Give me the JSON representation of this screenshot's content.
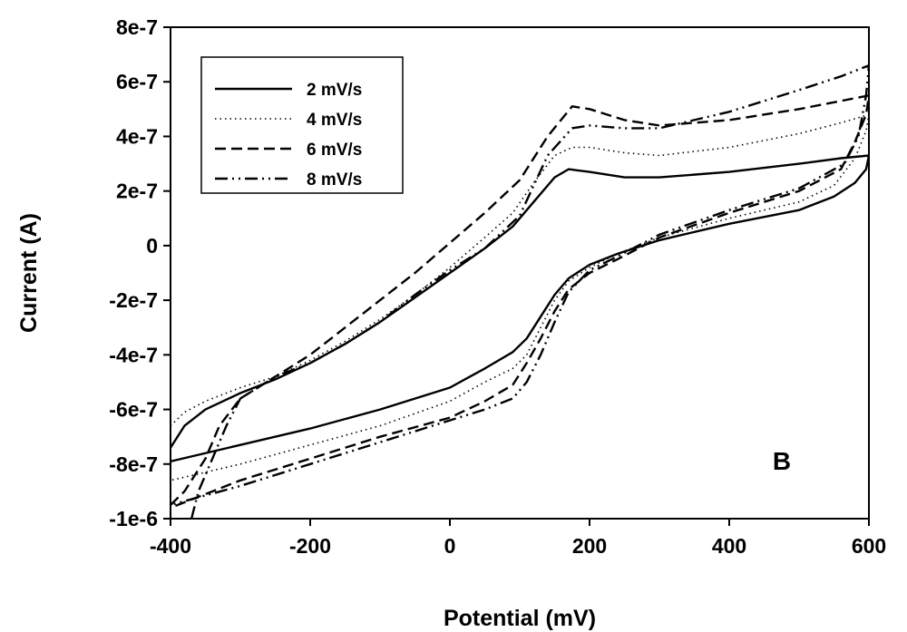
{
  "chart_data": {
    "type": "line",
    "title": "",
    "xlabel": "Potential (mV)",
    "ylabel": "Current (A)",
    "xlim": [
      -400,
      600
    ],
    "ylim": [
      -1e-06,
      8e-07
    ],
    "x_ticks": [
      -400,
      -200,
      0,
      200,
      400,
      600
    ],
    "x_tick_labels": [
      "-400",
      "-200",
      "0",
      "200",
      "400",
      "600"
    ],
    "y_ticks": [
      -1e-06,
      -8e-07,
      -6e-07,
      -4e-07,
      -2e-07,
      0,
      2e-07,
      4e-07,
      6e-07,
      8e-07
    ],
    "y_tick_labels": [
      "-1e-6",
      "-8e-7",
      "-6e-7",
      "-4e-7",
      "-2e-7",
      "0",
      "2e-7",
      "4e-7",
      "6e-7",
      "8e-7"
    ],
    "grid": false,
    "legend_position": "top-left",
    "annotation": "B",
    "series": [
      {
        "name": "2 mV/s",
        "style": "solid",
        "color": "#000000",
        "points": [
          [
            -400,
            -7.4e-07
          ],
          [
            -380,
            -6.6e-07
          ],
          [
            -350,
            -6e-07
          ],
          [
            -300,
            -5.4e-07
          ],
          [
            -250,
            -4.9e-07
          ],
          [
            -200,
            -4.3e-07
          ],
          [
            -150,
            -3.6e-07
          ],
          [
            -100,
            -2.8e-07
          ],
          [
            -50,
            -1.9e-07
          ],
          [
            0,
            -1e-07
          ],
          [
            50,
            -1e-08
          ],
          [
            90,
            7e-08
          ],
          [
            120,
            1.6e-07
          ],
          [
            150,
            2.5e-07
          ],
          [
            170,
            2.8e-07
          ],
          [
            200,
            2.7e-07
          ],
          [
            250,
            2.5e-07
          ],
          [
            300,
            2.5e-07
          ],
          [
            400,
            2.7e-07
          ],
          [
            500,
            3e-07
          ],
          [
            560,
            3.2e-07
          ],
          [
            600,
            3.3e-07
          ],
          [
            596,
            2.8e-07
          ],
          [
            580,
            2.3e-07
          ],
          [
            550,
            1.8e-07
          ],
          [
            500,
            1.3e-07
          ],
          [
            400,
            8e-08
          ],
          [
            300,
            2e-08
          ],
          [
            240,
            -3e-08
          ],
          [
            200,
            -7e-08
          ],
          [
            170,
            -1.2e-07
          ],
          [
            150,
            -1.8e-07
          ],
          [
            130,
            -2.6e-07
          ],
          [
            110,
            -3.4e-07
          ],
          [
            90,
            -3.9e-07
          ],
          [
            50,
            -4.5e-07
          ],
          [
            0,
            -5.2e-07
          ],
          [
            -100,
            -6e-07
          ],
          [
            -200,
            -6.7e-07
          ],
          [
            -300,
            -7.3e-07
          ],
          [
            -400,
            -7.9e-07
          ]
        ]
      },
      {
        "name": "4 mV/s",
        "style": "dotted",
        "color": "#000000",
        "points": [
          [
            -400,
            -6.6e-07
          ],
          [
            -380,
            -6.1e-07
          ],
          [
            -350,
            -5.7e-07
          ],
          [
            -300,
            -5.2e-07
          ],
          [
            -250,
            -4.8e-07
          ],
          [
            -200,
            -4.2e-07
          ],
          [
            -150,
            -3.5e-07
          ],
          [
            -100,
            -2.7e-07
          ],
          [
            -50,
            -1.8e-07
          ],
          [
            0,
            -8e-08
          ],
          [
            50,
            3e-08
          ],
          [
            90,
            1.2e-07
          ],
          [
            120,
            2.3e-07
          ],
          [
            150,
            3.3e-07
          ],
          [
            175,
            3.6e-07
          ],
          [
            200,
            3.6e-07
          ],
          [
            250,
            3.4e-07
          ],
          [
            300,
            3.3e-07
          ],
          [
            400,
            3.6e-07
          ],
          [
            500,
            4.1e-07
          ],
          [
            560,
            4.5e-07
          ],
          [
            600,
            4.8e-07
          ],
          [
            596,
            4.2e-07
          ],
          [
            580,
            3.2e-07
          ],
          [
            550,
            2.2e-07
          ],
          [
            500,
            1.6e-07
          ],
          [
            400,
            1e-07
          ],
          [
            300,
            3e-08
          ],
          [
            240,
            -3e-08
          ],
          [
            200,
            -8e-08
          ],
          [
            170,
            -1.3e-07
          ],
          [
            150,
            -2e-07
          ],
          [
            130,
            -3e-07
          ],
          [
            110,
            -4e-07
          ],
          [
            90,
            -4.5e-07
          ],
          [
            50,
            -5e-07
          ],
          [
            0,
            -5.7e-07
          ],
          [
            -100,
            -6.6e-07
          ],
          [
            -200,
            -7.3e-07
          ],
          [
            -300,
            -8e-07
          ],
          [
            -400,
            -8.6e-07
          ]
        ]
      },
      {
        "name": "6 mV/s",
        "style": "dashed",
        "color": "#000000",
        "points": [
          [
            -400,
            -9.5e-07
          ],
          [
            -380,
            -9e-07
          ],
          [
            -350,
            -7.8e-07
          ],
          [
            -330,
            -6.6e-07
          ],
          [
            -300,
            -5.6e-07
          ],
          [
            -250,
            -4.8e-07
          ],
          [
            -200,
            -4e-07
          ],
          [
            -150,
            -3e-07
          ],
          [
            -100,
            -2e-07
          ],
          [
            -50,
            -1e-07
          ],
          [
            0,
            1e-08
          ],
          [
            50,
            1.2e-07
          ],
          [
            100,
            2.4e-07
          ],
          [
            140,
            4e-07
          ],
          [
            175,
            5.1e-07
          ],
          [
            200,
            5e-07
          ],
          [
            250,
            4.6e-07
          ],
          [
            300,
            4.4e-07
          ],
          [
            400,
            4.6e-07
          ],
          [
            500,
            5e-07
          ],
          [
            560,
            5.3e-07
          ],
          [
            600,
            5.5e-07
          ],
          [
            596,
            4.8e-07
          ],
          [
            580,
            3.8e-07
          ],
          [
            560,
            2.8e-07
          ],
          [
            500,
            2e-07
          ],
          [
            400,
            1.2e-07
          ],
          [
            300,
            3e-08
          ],
          [
            240,
            -5e-08
          ],
          [
            200,
            -1e-07
          ],
          [
            170,
            -1.6e-07
          ],
          [
            150,
            -2.4e-07
          ],
          [
            130,
            -3.4e-07
          ],
          [
            110,
            -4.3e-07
          ],
          [
            90,
            -5.1e-07
          ],
          [
            50,
            -5.7e-07
          ],
          [
            0,
            -6.3e-07
          ],
          [
            -100,
            -7e-07
          ],
          [
            -200,
            -7.8e-07
          ],
          [
            -300,
            -8.6e-07
          ],
          [
            -400,
            -9.6e-07
          ]
        ]
      },
      {
        "name": "8 mV/s",
        "style": "dashdotdot",
        "color": "#000000",
        "points": [
          [
            -370,
            -1e-06
          ],
          [
            -360,
            -9e-07
          ],
          [
            -340,
            -7.8e-07
          ],
          [
            -320,
            -6.6e-07
          ],
          [
            -300,
            -5.6e-07
          ],
          [
            -250,
            -4.8e-07
          ],
          [
            -200,
            -4.3e-07
          ],
          [
            -150,
            -3.6e-07
          ],
          [
            -100,
            -2.8e-07
          ],
          [
            -50,
            -1.8e-07
          ],
          [
            0,
            -9e-08
          ],
          [
            50,
            -1e-08
          ],
          [
            100,
            1.1e-07
          ],
          [
            140,
            3.3e-07
          ],
          [
            175,
            4.3e-07
          ],
          [
            200,
            4.4e-07
          ],
          [
            250,
            4.3e-07
          ],
          [
            300,
            4.3e-07
          ],
          [
            400,
            4.9e-07
          ],
          [
            500,
            5.7e-07
          ],
          [
            560,
            6.2e-07
          ],
          [
            600,
            6.6e-07
          ],
          [
            596,
            5.5e-07
          ],
          [
            585,
            4e-07
          ],
          [
            565,
            3e-07
          ],
          [
            500,
            2.1e-07
          ],
          [
            400,
            1.3e-07
          ],
          [
            300,
            4e-08
          ],
          [
            240,
            -4e-08
          ],
          [
            200,
            -9e-08
          ],
          [
            170,
            -1.7e-07
          ],
          [
            150,
            -2.8e-07
          ],
          [
            130,
            -4e-07
          ],
          [
            110,
            -5e-07
          ],
          [
            90,
            -5.6e-07
          ],
          [
            50,
            -6e-07
          ],
          [
            0,
            -6.4e-07
          ],
          [
            -100,
            -7.2e-07
          ],
          [
            -200,
            -8e-07
          ],
          [
            -300,
            -8.8e-07
          ],
          [
            -400,
            -9.5e-07
          ]
        ]
      }
    ]
  }
}
